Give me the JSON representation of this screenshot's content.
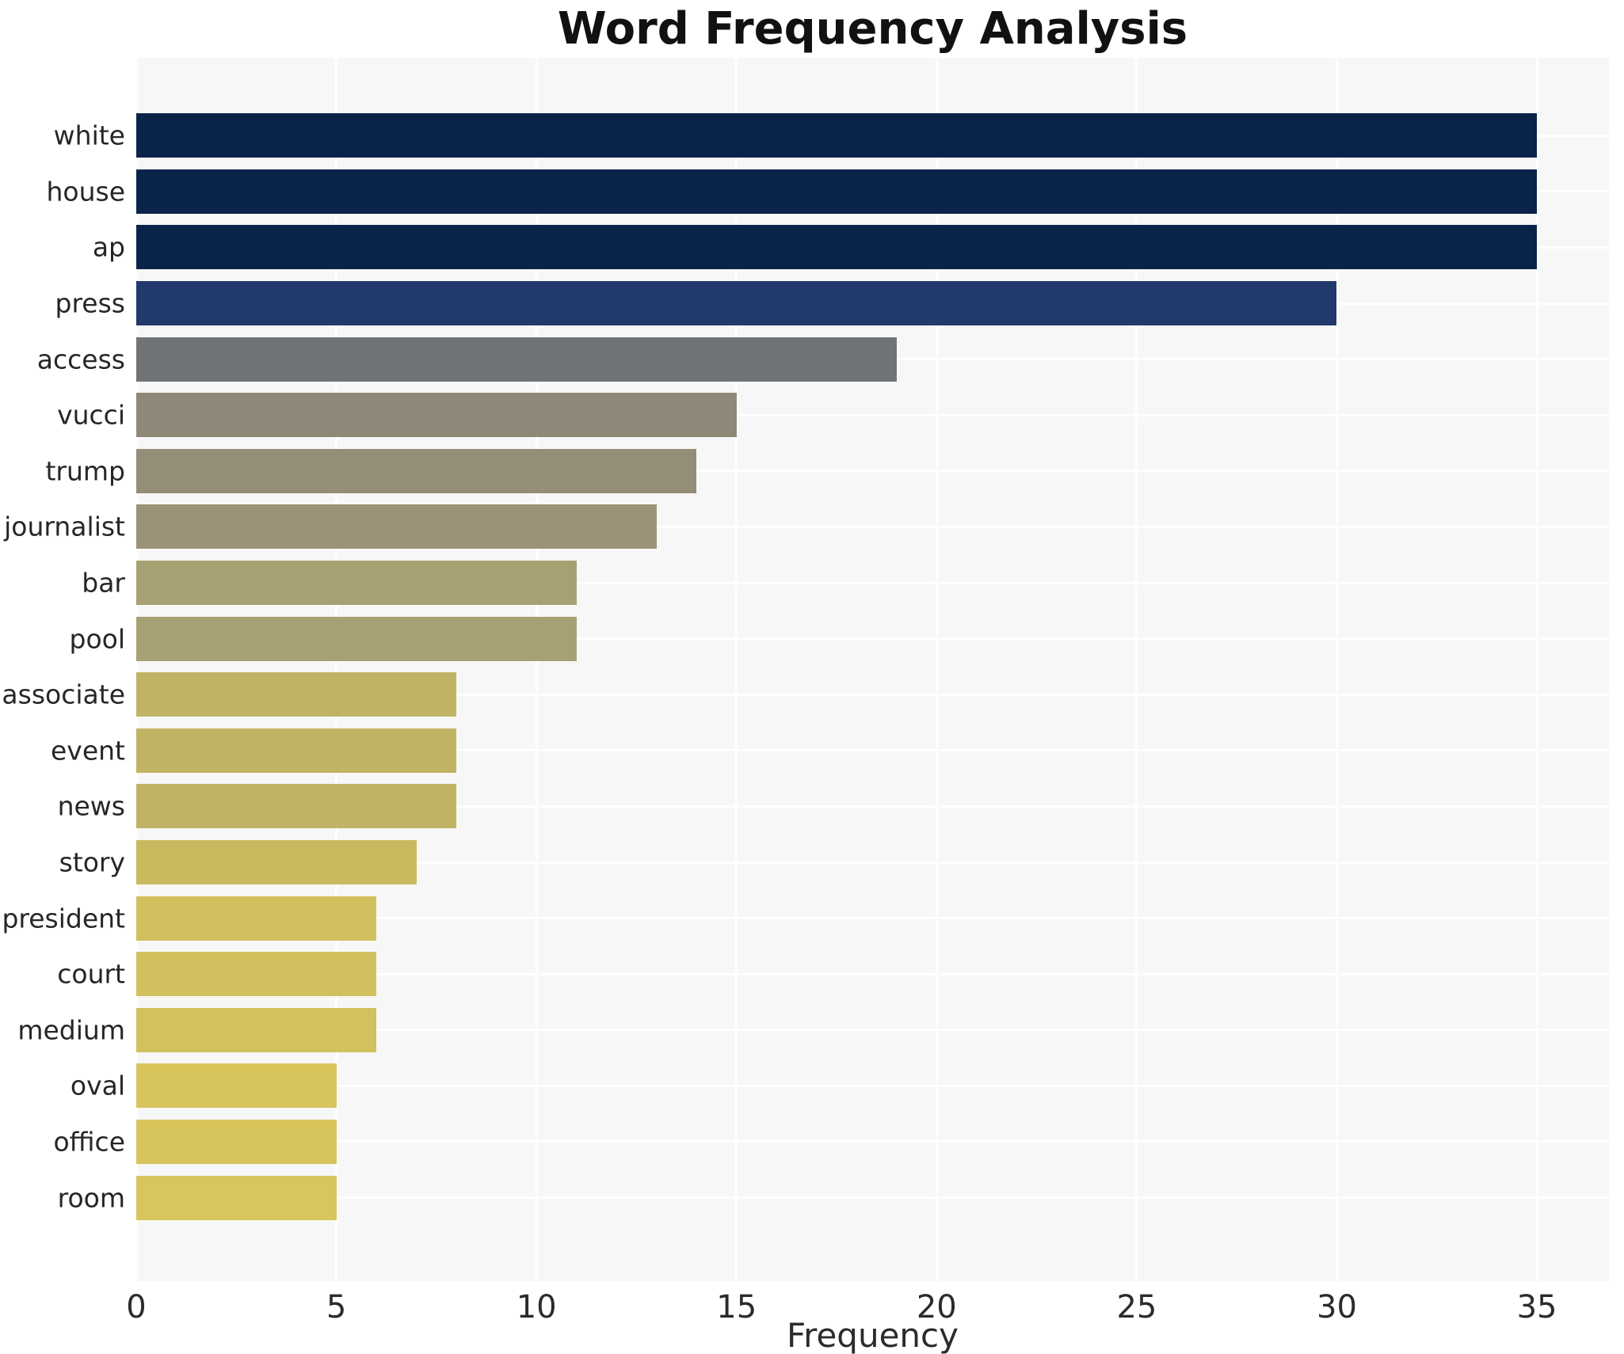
{
  "title": "Word Frequency Analysis",
  "chart_data": {
    "type": "bar",
    "orientation": "horizontal",
    "title": "Word Frequency Analysis",
    "xlabel": "Frequency",
    "ylabel": "",
    "categories": [
      "white",
      "house",
      "ap",
      "press",
      "access",
      "vucci",
      "trump",
      "journalist",
      "bar",
      "pool",
      "associate",
      "event",
      "news",
      "story",
      "president",
      "court",
      "medium",
      "oval",
      "office",
      "room"
    ],
    "values": [
      35,
      35,
      35,
      30,
      19,
      15,
      14,
      13,
      11,
      11,
      8,
      8,
      8,
      7,
      6,
      6,
      6,
      5,
      5,
      5
    ],
    "bar_colors": [
      "#0a2349",
      "#0a2349",
      "#0a2349",
      "#22396b",
      "#717477",
      "#8f8878",
      "#948d78",
      "#9b9377",
      "#a7a072",
      "#a7a072",
      "#c0b464",
      "#c0b464",
      "#c0b464",
      "#c9ba5f",
      "#d1c05d",
      "#d1c05d",
      "#d2c15d",
      "#d7c45a",
      "#d7c45a",
      "#d8c55b"
    ],
    "xticks": [
      0,
      5,
      10,
      15,
      20,
      25,
      30,
      35
    ],
    "xlim": [
      0,
      36.8
    ],
    "grid": "on",
    "panel_bg": "#f7f7f7",
    "gridline_color": "#ffffff",
    "legend": "none"
  }
}
